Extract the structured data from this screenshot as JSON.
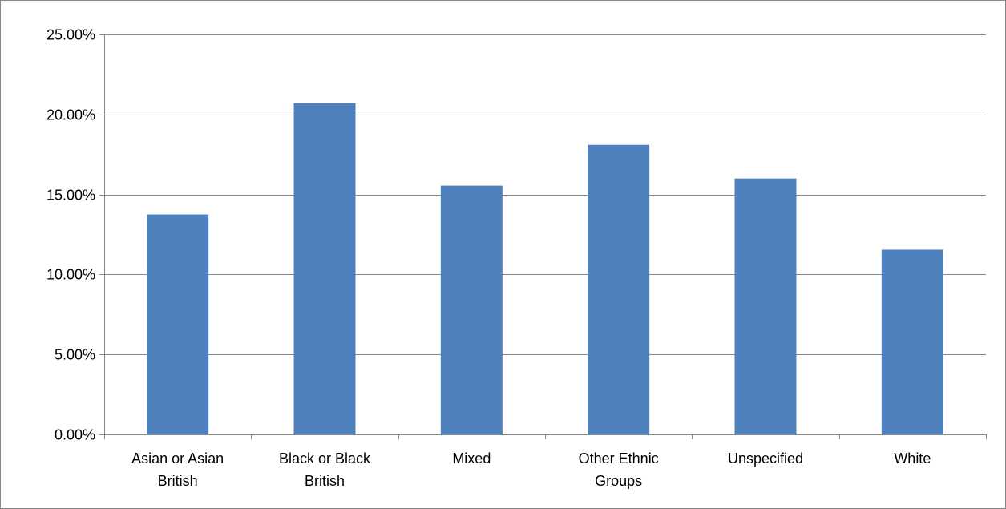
{
  "chart_data": {
    "type": "bar",
    "categories": [
      [
        "Asian or Asian",
        "British"
      ],
      [
        "Black or Black",
        "British"
      ],
      [
        "Mixed"
      ],
      [
        "Other Ethnic",
        "Groups"
      ],
      [
        "Unspecified"
      ],
      [
        "White"
      ]
    ],
    "values": [
      13.75,
      20.7,
      15.55,
      18.1,
      16.0,
      11.55
    ],
    "y_unit": "%",
    "ylim": [
      0,
      25
    ],
    "yticks": [
      "0.00%",
      "5.00%",
      "10.00%",
      "15.00%",
      "20.00%",
      "25.00%"
    ],
    "ytick_values": [
      0,
      5,
      10,
      15,
      20,
      25
    ],
    "grid": true,
    "legend": "none",
    "bar_color": "#4f81bd",
    "grid_color": "#868686"
  }
}
